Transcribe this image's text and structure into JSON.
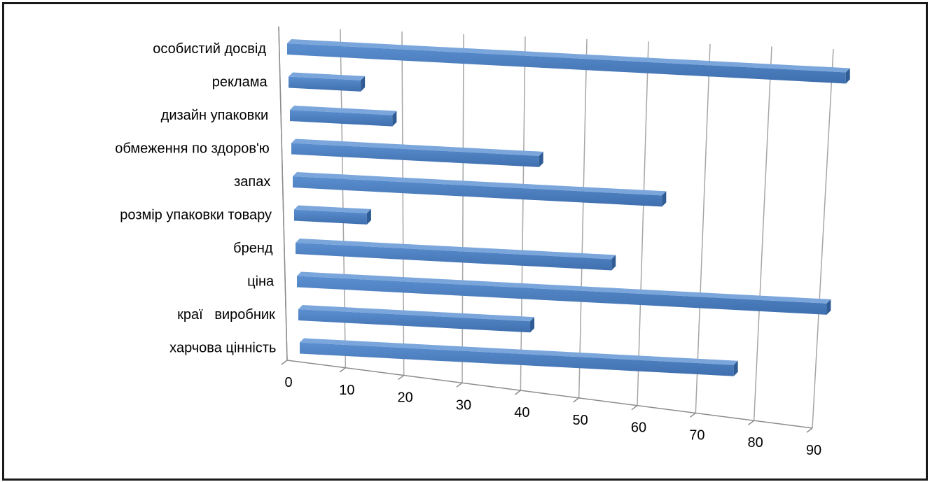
{
  "chart_data": {
    "type": "bar",
    "orientation": "horizontal",
    "style": "3d",
    "categories": [
      "особистий досвід",
      "реклама",
      "дизайн упаковки",
      "обмеження по здоров'ю",
      "запах",
      "розмір упаковки товару",
      "бренд",
      "ціна",
      "краї   виробник",
      "харчова цінність"
    ],
    "values": [
      93,
      12,
      17,
      41,
      61,
      12,
      52,
      87,
      38,
      71
    ],
    "xticks": [
      "0",
      "10",
      "20",
      "30",
      "40",
      "50",
      "60",
      "70",
      "80",
      "90"
    ],
    "xlim": [
      0,
      90
    ],
    "grid": true,
    "legend": "none",
    "bar_color": "#4f81bd",
    "title": "",
    "xlabel": "",
    "ylabel": ""
  }
}
